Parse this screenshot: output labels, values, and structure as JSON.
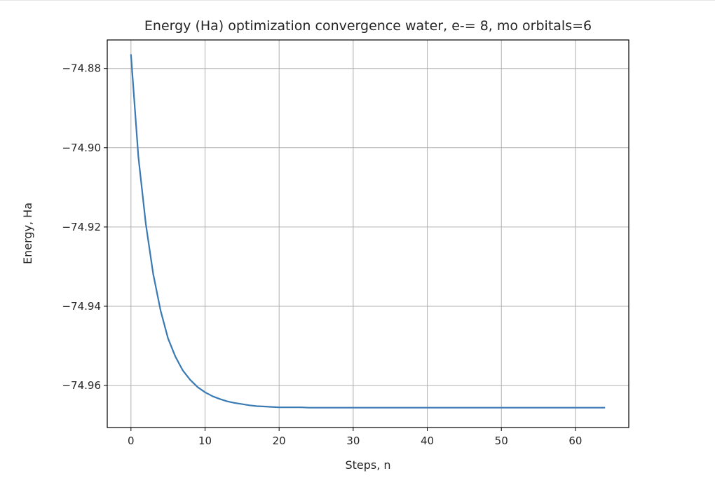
{
  "chart_data": {
    "type": "line",
    "title": "Energy (Ha) optimization convergence water, e-= 8, mo orbitals=6",
    "xlabel": "Steps, n",
    "ylabel": "Energy, Ha",
    "xlim": [
      -3.2,
      67.2
    ],
    "ylim": [
      -74.9706,
      -74.8728
    ],
    "xticks": [
      0,
      10,
      20,
      30,
      40,
      50,
      60
    ],
    "xtick_labels": [
      "0",
      "10",
      "20",
      "30",
      "40",
      "50",
      "60"
    ],
    "yticks": [
      -74.88,
      -74.9,
      -74.92,
      -74.94,
      -74.96
    ],
    "ytick_labels": [
      "−74.88",
      "−74.90",
      "−74.92",
      "−74.94",
      "−74.96"
    ],
    "grid": true,
    "legend": false,
    "line_color": "#3a7ab4",
    "series": [
      {
        "x": [
          0,
          1,
          2,
          3,
          4,
          5,
          6,
          7,
          8,
          9,
          10,
          11,
          12,
          13,
          14,
          15,
          16,
          17,
          18,
          19,
          20,
          21,
          22,
          23,
          24,
          25,
          26,
          27,
          28,
          29,
          30,
          31,
          32,
          33,
          34,
          35,
          36,
          37,
          38,
          39,
          40,
          41,
          42,
          43,
          44,
          45,
          46,
          47,
          48,
          49,
          50,
          51,
          52,
          53,
          54,
          55,
          56,
          57,
          58,
          59,
          60,
          61,
          62,
          63,
          64
        ],
        "values": [
          -74.8764,
          -74.9023,
          -74.9192,
          -74.9318,
          -74.9411,
          -74.9481,
          -74.9527,
          -74.9562,
          -74.9586,
          -74.9604,
          -74.9617,
          -74.9627,
          -74.9634,
          -74.964,
          -74.9644,
          -74.9647,
          -74.965,
          -74.9652,
          -74.9653,
          -74.9654,
          -74.9655,
          -74.9655,
          -74.9655,
          -74.9655,
          -74.9656,
          -74.9656,
          -74.9656,
          -74.9656,
          -74.9656,
          -74.9656,
          -74.9656,
          -74.9656,
          -74.9656,
          -74.9656,
          -74.9656,
          -74.9656,
          -74.9656,
          -74.9656,
          -74.9656,
          -74.9656,
          -74.9656,
          -74.9656,
          -74.9656,
          -74.9656,
          -74.9656,
          -74.9656,
          -74.9656,
          -74.9656,
          -74.9656,
          -74.9656,
          -74.9656,
          -74.9656,
          -74.9656,
          -74.9656,
          -74.9656,
          -74.9656,
          -74.9656,
          -74.9656,
          -74.9656,
          -74.9656,
          -74.9656,
          -74.9656,
          -74.9656,
          -74.9656,
          -74.9656
        ]
      }
    ]
  }
}
